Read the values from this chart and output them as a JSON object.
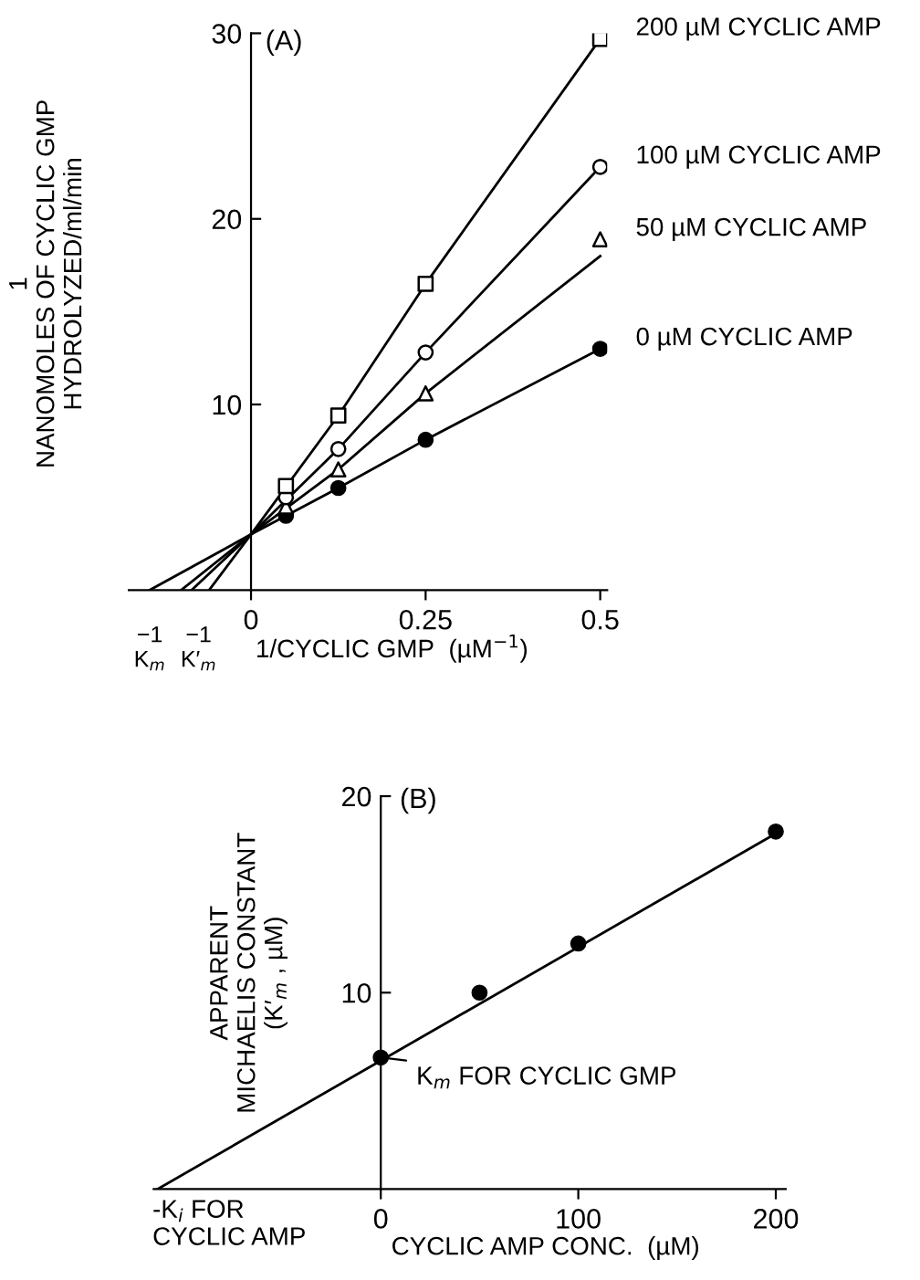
{
  "chart_data": [
    {
      "type": "line",
      "title": "(A)",
      "xlabel": "1/CYCLIC GMP  (µM$^{−1}$)",
      "ylabel": "1\nNANOMOLES OF CYCLIC GMP\nHYDROLYZED/ml/min",
      "xlim": [
        -0.175,
        0.51
      ],
      "ylim": [
        0,
        30
      ],
      "xticks": [
        0,
        0.25,
        0.5
      ],
      "yticks": [
        10,
        20,
        30
      ],
      "grid": false,
      "legend": false,
      "series": [
        {
          "color": "#000000",
          "x": [
            -0.145,
            0,
            0.125,
            0.25,
            0.5
          ],
          "values": [
            0,
            3,
            5.5,
            8.1,
            13
          ]
        },
        {
          "color": "#000000",
          "x": [
            -0.1,
            0,
            0.125,
            0.25,
            0.5
          ],
          "values": [
            0,
            3,
            6.5,
            10.6,
            18.0
          ]
        },
        {
          "color": "#000000",
          "x": [
            -0.085,
            0,
            0.125,
            0.25,
            0.5
          ],
          "values": [
            0,
            3,
            7.6,
            12.8,
            22.8
          ]
        },
        {
          "color": "#000000",
          "x": [
            -0.06,
            0,
            0.125,
            0.25,
            0.5
          ],
          "values": [
            0,
            3,
            9.4,
            16.5,
            29.7
          ]
        },
        {
          "type": "scatter",
          "name": "0 µM CYCLIC AMP",
          "marker": "circle",
          "color": "#000000",
          "x": [
            0.05,
            0.125,
            0.25,
            0.5
          ],
          "values": [
            4.0,
            5.5,
            8.1,
            13
          ]
        },
        {
          "type": "scatter",
          "name": "50 µM CYCLIC AMP",
          "marker": "triangle",
          "color": "#ffffff",
          "x": [
            0.05,
            0.125,
            0.25,
            0.5
          ],
          "values": [
            4.5,
            6.5,
            10.6,
            18.9
          ]
        },
        {
          "type": "scatter",
          "name": "100 µM CYCLIC AMP",
          "marker": "circle",
          "color": "#ffffff",
          "x": [
            0.05,
            0.125,
            0.25,
            0.5
          ],
          "values": [
            5.0,
            7.6,
            12.8,
            22.8
          ]
        },
        {
          "type": "scatter",
          "name": "200 µM CYCLIC AMP",
          "marker": "square",
          "color": "#ffffff",
          "x": [
            0.05,
            0.125,
            0.25,
            0.5
          ],
          "values": [
            5.6,
            9.4,
            16.5,
            29.7
          ]
        }
      ],
      "annotations": [
        {
          "text": "−1\nK$_{m}$",
          "x": -0.145,
          "y": 0
        },
        {
          "text": "−1\nK′$_{m}$",
          "x": -0.075,
          "y": 0
        }
      ]
    },
    {
      "type": "line",
      "title": "(B)",
      "xlabel": "CYCLIC AMP CONC.  (µM)",
      "ylabel": "APPARENT\nMICHAELIS CONSTANT\n(K′$_{m}$ , µM)",
      "xlim": [
        -115,
        205
      ],
      "ylim": [
        0,
        20
      ],
      "xticks": [
        0,
        100,
        200
      ],
      "yticks": [
        10,
        20
      ],
      "grid": false,
      "legend": false,
      "series": [
        {
          "color": "#000000",
          "x": [
            -113,
            200
          ],
          "values": [
            0,
            18.1
          ]
        },
        {
          "type": "scatter",
          "marker": "circle",
          "color": "#000000",
          "x": [
            0,
            50,
            100,
            200
          ],
          "values": [
            6.7,
            10,
            12.5,
            18.2
          ]
        }
      ],
      "annotations": [
        {
          "text": "K$_{m}$ FOR CYCLIC GMP",
          "x": 0,
          "y": 6.7
        },
        {
          "text": "-K$_{i}$ FOR\nCYCLIC AMP",
          "x": -113,
          "y": 0
        }
      ]
    }
  ]
}
